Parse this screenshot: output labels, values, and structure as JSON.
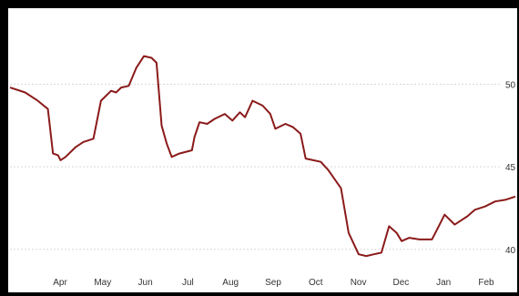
{
  "chart_data": {
    "type": "line",
    "grid": true,
    "line_color": "#8b1a1a",
    "x_ticks": [
      "Apr",
      "May",
      "Jun",
      "Jul",
      "Aug",
      "Sep",
      "Oct",
      "Nov",
      "Dec",
      "Jan",
      "Feb"
    ],
    "y_ticks": [
      40,
      45,
      50
    ],
    "ylim": [
      38.5,
      53.5
    ],
    "series": [
      {
        "x": [
          0,
          0.03,
          0.055,
          0.075,
          0.085,
          0.095,
          0.1,
          0.11,
          0.13,
          0.145,
          0.165,
          0.18,
          0.2,
          0.21,
          0.22,
          0.235,
          0.25,
          0.265,
          0.28,
          0.29,
          0.3,
          0.31,
          0.32,
          0.335,
          0.36,
          0.365,
          0.375,
          0.39,
          0.405,
          0.425,
          0.44,
          0.455,
          0.465,
          0.48,
          0.5,
          0.515,
          0.525,
          0.545,
          0.56,
          0.575,
          0.585,
          0.6,
          0.615,
          0.63,
          0.655,
          0.67,
          0.69,
          0.705,
          0.72,
          0.735,
          0.75,
          0.765,
          0.775,
          0.79,
          0.81,
          0.835,
          0.85,
          0.86,
          0.88,
          0.905,
          0.92,
          0.94,
          0.96,
          0.98,
          1.0
        ],
        "y": [
          49.8,
          49.5,
          49.0,
          48.5,
          45.8,
          45.7,
          45.4,
          45.6,
          46.2,
          46.5,
          46.7,
          49.0,
          49.6,
          49.5,
          49.8,
          49.9,
          51.0,
          51.7,
          51.6,
          51.3,
          47.5,
          46.4,
          45.6,
          45.8,
          46.0,
          46.8,
          47.7,
          47.6,
          47.9,
          48.2,
          47.8,
          48.3,
          48.0,
          49.0,
          48.7,
          48.2,
          47.3,
          47.6,
          47.4,
          47.0,
          45.5,
          45.4,
          45.3,
          44.8,
          43.7,
          41.0,
          39.7,
          39.6,
          39.7,
          39.8,
          41.4,
          41.0,
          40.5,
          40.7,
          40.6,
          40.6,
          41.5,
          42.1,
          41.5,
          42.0,
          42.4,
          42.6,
          42.9,
          43.0,
          43.2
        ]
      }
    ]
  }
}
